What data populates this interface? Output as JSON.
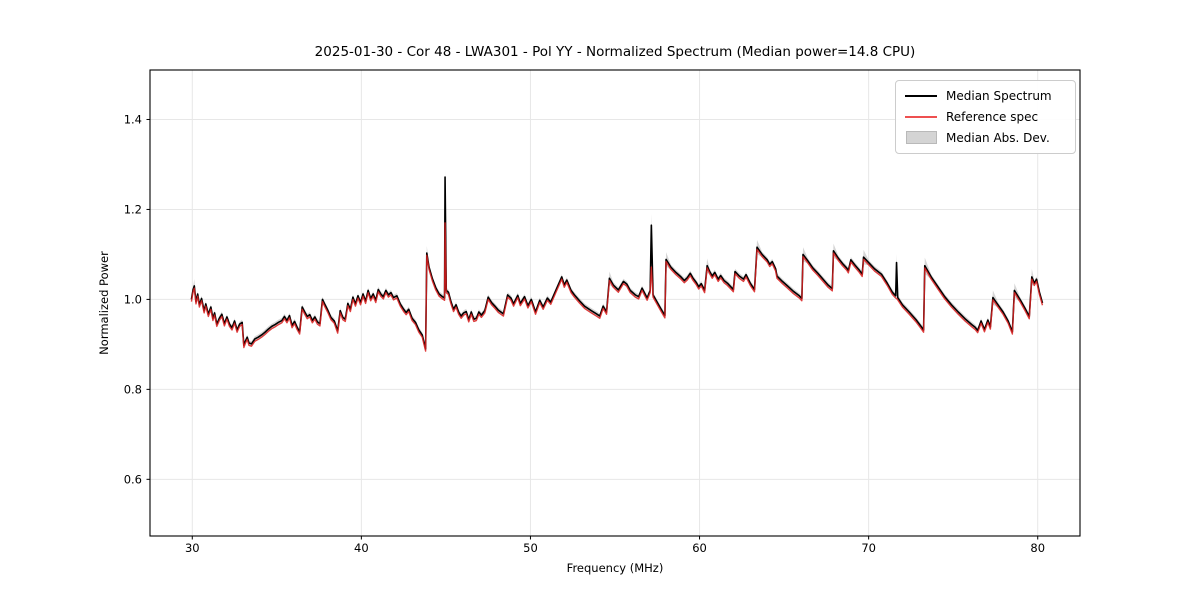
{
  "figure": {
    "title": "2025-01-30 - Cor 48 - LWA301 - Pol YY - Normalized Spectrum (Median power=14.8 CPU)"
  },
  "chart_data": {
    "type": "line",
    "title": "2025-01-30 - Cor 48 - LWA301 - Pol YY - Normalized Spectrum (Median power=14.8 CPU)",
    "xlabel": "Frequency (MHz)",
    "ylabel": "Normalized Power",
    "xlim": [
      27.5,
      82.5
    ],
    "ylim": [
      0.474,
      1.51
    ],
    "xticks": [
      30,
      40,
      50,
      60,
      70,
      80
    ],
    "yticks": [
      0.6,
      0.8,
      1.0,
      1.2,
      1.4
    ],
    "grid": true,
    "grid_color": "#e7e7e7",
    "frame_color": "#000000",
    "legend": {
      "position": "upper right",
      "entries": [
        {
          "label": "Median Spectrum",
          "type": "line",
          "color": "#000000"
        },
        {
          "label": "Reference spec",
          "type": "line",
          "color": "#ee5050"
        },
        {
          "label": "Median Abs. Dev.",
          "type": "patch",
          "color": "#d4d4d4"
        }
      ]
    },
    "series": [
      {
        "name": "Median Spectrum",
        "color": "#000000",
        "points": [
          [
            29.95,
            1.0
          ],
          [
            30.05,
            1.022
          ],
          [
            30.12,
            1.03
          ],
          [
            30.22,
            0.995
          ],
          [
            30.32,
            1.012
          ],
          [
            30.42,
            0.988
          ],
          [
            30.55,
            1.002
          ],
          [
            30.7,
            0.975
          ],
          [
            30.8,
            0.99
          ],
          [
            30.95,
            0.967
          ],
          [
            31.1,
            0.983
          ],
          [
            31.22,
            0.958
          ],
          [
            31.32,
            0.97
          ],
          [
            31.45,
            0.945
          ],
          [
            31.6,
            0.958
          ],
          [
            31.75,
            0.967
          ],
          [
            31.9,
            0.946
          ],
          [
            32.05,
            0.961
          ],
          [
            32.2,
            0.945
          ],
          [
            32.35,
            0.937
          ],
          [
            32.5,
            0.952
          ],
          [
            32.65,
            0.932
          ],
          [
            32.8,
            0.945
          ],
          [
            32.95,
            0.949
          ],
          [
            33.05,
            0.898
          ],
          [
            33.15,
            0.908
          ],
          [
            33.25,
            0.916
          ],
          [
            33.35,
            0.903
          ],
          [
            33.5,
            0.901
          ],
          [
            33.7,
            0.912
          ],
          [
            33.9,
            0.916
          ],
          [
            34.1,
            0.921
          ],
          [
            34.3,
            0.927
          ],
          [
            34.5,
            0.934
          ],
          [
            34.7,
            0.94
          ],
          [
            34.9,
            0.944
          ],
          [
            35.1,
            0.949
          ],
          [
            35.3,
            0.953
          ],
          [
            35.45,
            0.962
          ],
          [
            35.6,
            0.953
          ],
          [
            35.75,
            0.964
          ],
          [
            35.9,
            0.942
          ],
          [
            36.05,
            0.951
          ],
          [
            36.2,
            0.938
          ],
          [
            36.35,
            0.928
          ],
          [
            36.5,
            0.983
          ],
          [
            36.65,
            0.972
          ],
          [
            36.8,
            0.962
          ],
          [
            36.95,
            0.966
          ],
          [
            37.1,
            0.953
          ],
          [
            37.25,
            0.961
          ],
          [
            37.4,
            0.95
          ],
          [
            37.55,
            0.946
          ],
          [
            37.7,
            1.0
          ],
          [
            37.85,
            0.988
          ],
          [
            38.0,
            0.977
          ],
          [
            38.2,
            0.96
          ],
          [
            38.4,
            0.952
          ],
          [
            38.6,
            0.93
          ],
          [
            38.75,
            0.975
          ],
          [
            38.9,
            0.96
          ],
          [
            39.05,
            0.956
          ],
          [
            39.2,
            0.991
          ],
          [
            39.35,
            0.978
          ],
          [
            39.5,
            1.005
          ],
          [
            39.65,
            0.99
          ],
          [
            39.8,
            1.008
          ],
          [
            39.95,
            0.993
          ],
          [
            40.1,
            1.012
          ],
          [
            40.25,
            0.996
          ],
          [
            40.4,
            1.02
          ],
          [
            40.55,
            1.002
          ],
          [
            40.7,
            1.012
          ],
          [
            40.85,
            0.998
          ],
          [
            41.0,
            1.022
          ],
          [
            41.15,
            1.012
          ],
          [
            41.3,
            1.006
          ],
          [
            41.45,
            1.02
          ],
          [
            41.6,
            1.01
          ],
          [
            41.75,
            1.015
          ],
          [
            41.9,
            1.004
          ],
          [
            42.1,
            1.008
          ],
          [
            42.3,
            0.99
          ],
          [
            42.5,
            0.978
          ],
          [
            42.65,
            0.971
          ],
          [
            42.8,
            0.978
          ],
          [
            43.0,
            0.958
          ],
          [
            43.2,
            0.949
          ],
          [
            43.4,
            0.932
          ],
          [
            43.6,
            0.921
          ],
          [
            43.8,
            0.89
          ],
          [
            43.87,
            1.103
          ],
          [
            44.0,
            1.072
          ],
          [
            44.2,
            1.046
          ],
          [
            44.4,
            1.026
          ],
          [
            44.6,
            1.012
          ],
          [
            44.8,
            1.006
          ],
          [
            44.92,
            1.003
          ],
          [
            44.95,
            1.272
          ],
          [
            45.02,
            1.02
          ],
          [
            45.15,
            1.016
          ],
          [
            45.3,
            0.995
          ],
          [
            45.45,
            0.978
          ],
          [
            45.6,
            0.988
          ],
          [
            45.75,
            0.972
          ],
          [
            45.9,
            0.963
          ],
          [
            46.05,
            0.97
          ],
          [
            46.2,
            0.973
          ],
          [
            46.35,
            0.955
          ],
          [
            46.5,
            0.972
          ],
          [
            46.65,
            0.956
          ],
          [
            46.8,
            0.958
          ],
          [
            46.95,
            0.972
          ],
          [
            47.1,
            0.965
          ],
          [
            47.3,
            0.975
          ],
          [
            47.5,
            1.005
          ],
          [
            47.7,
            0.993
          ],
          [
            47.9,
            0.985
          ],
          [
            48.1,
            0.976
          ],
          [
            48.4,
            0.968
          ],
          [
            48.65,
            1.01
          ],
          [
            48.85,
            1.003
          ],
          [
            49.0,
            0.99
          ],
          [
            49.25,
            1.009
          ],
          [
            49.4,
            0.991
          ],
          [
            49.65,
            1.006
          ],
          [
            49.85,
            0.986
          ],
          [
            50.05,
            1.0
          ],
          [
            50.3,
            0.972
          ],
          [
            50.55,
            0.998
          ],
          [
            50.75,
            0.983
          ],
          [
            51.0,
            1.003
          ],
          [
            51.2,
            0.994
          ],
          [
            51.5,
            1.02
          ],
          [
            51.85,
            1.05
          ],
          [
            52.0,
            1.032
          ],
          [
            52.15,
            1.043
          ],
          [
            52.4,
            1.02
          ],
          [
            52.6,
            1.01
          ],
          [
            52.9,
            0.997
          ],
          [
            53.2,
            0.985
          ],
          [
            53.6,
            0.975
          ],
          [
            53.9,
            0.968
          ],
          [
            54.1,
            0.963
          ],
          [
            54.3,
            0.985
          ],
          [
            54.5,
            0.972
          ],
          [
            54.67,
            1.047
          ],
          [
            54.9,
            1.032
          ],
          [
            55.2,
            1.021
          ],
          [
            55.5,
            1.04
          ],
          [
            55.7,
            1.034
          ],
          [
            55.9,
            1.02
          ],
          [
            56.2,
            1.01
          ],
          [
            56.4,
            1.006
          ],
          [
            56.6,
            1.025
          ],
          [
            56.9,
            1.003
          ],
          [
            57.08,
            1.02
          ],
          [
            57.15,
            1.165
          ],
          [
            57.25,
            1.01
          ],
          [
            57.4,
            1.0
          ],
          [
            57.7,
            0.98
          ],
          [
            57.95,
            0.964
          ],
          [
            58.02,
            1.089
          ],
          [
            58.3,
            1.072
          ],
          [
            58.6,
            1.06
          ],
          [
            58.9,
            1.05
          ],
          [
            59.1,
            1.042
          ],
          [
            59.27,
            1.048
          ],
          [
            59.45,
            1.058
          ],
          [
            59.6,
            1.048
          ],
          [
            59.8,
            1.038
          ],
          [
            59.95,
            1.028
          ],
          [
            60.1,
            1.035
          ],
          [
            60.3,
            1.02
          ],
          [
            60.45,
            1.075
          ],
          [
            60.6,
            1.062
          ],
          [
            60.75,
            1.052
          ],
          [
            60.9,
            1.06
          ],
          [
            61.1,
            1.045
          ],
          [
            61.25,
            1.053
          ],
          [
            61.45,
            1.042
          ],
          [
            61.65,
            1.036
          ],
          [
            61.85,
            1.028
          ],
          [
            62.0,
            1.022
          ],
          [
            62.1,
            1.062
          ],
          [
            62.35,
            1.052
          ],
          [
            62.6,
            1.045
          ],
          [
            62.75,
            1.055
          ],
          [
            63.0,
            1.036
          ],
          [
            63.25,
            1.022
          ],
          [
            63.4,
            1.116
          ],
          [
            63.7,
            1.1
          ],
          [
            64.0,
            1.088
          ],
          [
            64.15,
            1.078
          ],
          [
            64.3,
            1.084
          ],
          [
            64.5,
            1.068
          ],
          [
            64.58,
            1.052
          ],
          [
            64.9,
            1.04
          ],
          [
            65.2,
            1.03
          ],
          [
            65.55,
            1.018
          ],
          [
            65.9,
            1.008
          ],
          [
            66.05,
            1.002
          ],
          [
            66.12,
            1.1
          ],
          [
            66.4,
            1.086
          ],
          [
            66.7,
            1.07
          ],
          [
            67.0,
            1.058
          ],
          [
            67.3,
            1.045
          ],
          [
            67.6,
            1.032
          ],
          [
            67.85,
            1.024
          ],
          [
            67.92,
            1.108
          ],
          [
            68.2,
            1.092
          ],
          [
            68.45,
            1.08
          ],
          [
            68.7,
            1.07
          ],
          [
            68.8,
            1.064
          ],
          [
            68.95,
            1.088
          ],
          [
            69.2,
            1.076
          ],
          [
            69.45,
            1.065
          ],
          [
            69.62,
            1.056
          ],
          [
            69.7,
            1.094
          ],
          [
            70.0,
            1.082
          ],
          [
            70.35,
            1.068
          ],
          [
            70.76,
            1.056
          ],
          [
            71.1,
            1.036
          ],
          [
            71.4,
            1.016
          ],
          [
            71.6,
            1.008
          ],
          [
            71.65,
            1.082
          ],
          [
            71.72,
            1.004
          ],
          [
            72.0,
            0.988
          ],
          [
            72.4,
            0.972
          ],
          [
            72.8,
            0.955
          ],
          [
            73.1,
            0.94
          ],
          [
            73.25,
            0.932
          ],
          [
            73.32,
            1.075
          ],
          [
            73.7,
            1.05
          ],
          [
            74.1,
            1.028
          ],
          [
            74.5,
            1.006
          ],
          [
            74.9,
            0.988
          ],
          [
            75.3,
            0.972
          ],
          [
            75.7,
            0.957
          ],
          [
            76.1,
            0.944
          ],
          [
            76.3,
            0.938
          ],
          [
            76.45,
            0.931
          ],
          [
            76.65,
            0.952
          ],
          [
            76.85,
            0.933
          ],
          [
            77.05,
            0.954
          ],
          [
            77.2,
            0.939
          ],
          [
            77.35,
            1.004
          ],
          [
            77.65,
            0.988
          ],
          [
            77.95,
            0.972
          ],
          [
            78.25,
            0.952
          ],
          [
            78.5,
            0.928
          ],
          [
            78.62,
            1.02
          ],
          [
            78.95,
            1.0
          ],
          [
            79.25,
            0.98
          ],
          [
            79.5,
            0.962
          ],
          [
            79.65,
            1.05
          ],
          [
            79.8,
            1.036
          ],
          [
            79.93,
            1.045
          ],
          [
            80.1,
            1.016
          ],
          [
            80.28,
            0.992
          ]
        ]
      },
      {
        "name": "Reference spec",
        "color": "rgba(220,32,32,0.85)",
        "derived_from": "Median Spectrum",
        "offset": -0.005,
        "spike_overrides": [
          [
            44.95,
            1.17
          ],
          [
            57.15,
            1.072
          ],
          [
            71.65,
            1.002
          ]
        ]
      },
      {
        "name": "Median Abs. Dev.",
        "band_color": "rgba(165,165,165,0.45)",
        "band_halfwidth": 0.006,
        "extra_halfwidths": [
          [
            30.12,
            0.009
          ],
          [
            43.87,
            0.01
          ],
          [
            44.95,
            0.012
          ],
          [
            54.67,
            0.009
          ],
          [
            57.15,
            0.02
          ],
          [
            58.02,
            0.01
          ],
          [
            60.45,
            0.01
          ],
          [
            63.4,
            0.01
          ],
          [
            66.12,
            0.01
          ],
          [
            67.92,
            0.01
          ],
          [
            69.7,
            0.01
          ],
          [
            71.65,
            0.012
          ],
          [
            73.32,
            0.012
          ],
          [
            77.35,
            0.01
          ],
          [
            78.62,
            0.01
          ],
          [
            79.65,
            0.012
          ]
        ]
      }
    ]
  }
}
